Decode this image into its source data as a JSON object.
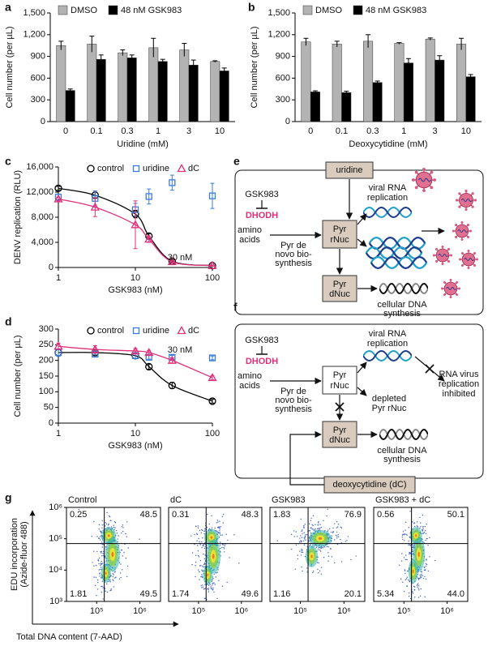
{
  "chart_data": [
    {
      "panel_label": "a",
      "type": "bar",
      "categories": [
        "0",
        "0.1",
        "0.3",
        "1",
        "3",
        "10"
      ],
      "xlabel": "Uridine (mM)",
      "ylabel": "Cell number (per µL)",
      "ylim": [
        0,
        1500
      ],
      "yticks": [
        0,
        300,
        600,
        900,
        {
          "value": 1200,
          "label": "1,200"
        },
        {
          "value": 1500,
          "label": "1,500"
        }
      ],
      "series": [
        {
          "name": "DMSO",
          "color": "#b3b3b3",
          "values": [
            1050,
            1070,
            950,
            1020,
            990,
            830
          ],
          "errors": [
            60,
            110,
            40,
            130,
            90,
            10
          ]
        },
        {
          "name": "48 nM GSK983",
          "color": "#000000",
          "values": [
            430,
            860,
            880,
            830,
            780,
            700
          ],
          "errors": [
            20,
            60,
            40,
            30,
            70,
            40
          ]
        }
      ]
    },
    {
      "panel_label": "b",
      "type": "bar",
      "categories": [
        "0",
        "0.1",
        "0.3",
        "1",
        "3",
        "10"
      ],
      "xlabel": "Deoxycytidine (mM)",
      "ylabel": "Cell number (per µL)",
      "ylim": [
        0,
        1500
      ],
      "yticks": [
        0,
        300,
        600,
        900,
        {
          "value": 1200,
          "label": "1,200"
        },
        {
          "value": 1500,
          "label": "1,500"
        }
      ],
      "series": [
        {
          "name": "DMSO",
          "color": "#b3b3b3",
          "values": [
            1100,
            1070,
            1110,
            1080,
            1140,
            1070
          ],
          "errors": [
            50,
            40,
            90,
            10,
            15,
            80
          ]
        },
        {
          "name": "48 nM GSK983",
          "color": "#000000",
          "values": [
            410,
            400,
            540,
            810,
            850,
            620
          ],
          "errors": [
            15,
            20,
            20,
            60,
            60,
            30
          ]
        }
      ]
    },
    {
      "panel_label": "c",
      "type": "scatter",
      "xscale": "log",
      "xlim": [
        1,
        100
      ],
      "xticks": [
        1,
        10,
        100
      ],
      "ylim": [
        0,
        16000
      ],
      "yticks": [
        0,
        {
          "value": 4000,
          "label": "4,000"
        },
        {
          "value": 8000,
          "label": "8,000"
        },
        {
          "value": 12000,
          "label": "12,000"
        },
        {
          "value": 16000,
          "label": "16,000"
        }
      ],
      "xlabel": "GSK983 (nM)",
      "ylabel": "DENV replication (RLU)",
      "annotation": "30 nM",
      "series": [
        {
          "name": "control",
          "color": "#000000",
          "marker": "circle",
          "fit": true,
          "x": [
            1,
            3,
            10,
            15,
            30,
            100
          ],
          "values": [
            12600,
            11500,
            8500,
            5000,
            1000,
            300
          ],
          "errors": [
            300,
            500,
            600,
            400,
            200,
            100
          ]
        },
        {
          "name": "uridine",
          "color": "#3a7bd5",
          "marker": "square",
          "fit": false,
          "x": [
            1,
            3,
            10,
            15,
            30,
            100
          ],
          "values": [
            11200,
            11000,
            9200,
            11300,
            13500,
            11400
          ],
          "errors": [
            500,
            1200,
            1000,
            1200,
            1200,
            2000
          ]
        },
        {
          "name": "dC",
          "color": "#e0307a",
          "marker": "triangle",
          "fit": true,
          "x": [
            1,
            3,
            10,
            15,
            30,
            100
          ],
          "values": [
            10900,
            9600,
            6800,
            4500,
            900,
            300
          ],
          "errors": [
            300,
            1500,
            3800,
            500,
            200,
            100
          ]
        }
      ]
    },
    {
      "panel_label": "d",
      "type": "scatter",
      "xscale": "log",
      "xlim": [
        1,
        100
      ],
      "xticks": [
        1,
        10,
        100
      ],
      "ylim": [
        0,
        300
      ],
      "yticks": [
        0,
        50,
        100,
        150,
        200,
        250,
        300
      ],
      "xlabel": "GSK983 (nM)",
      "ylabel": "Cell number (per µL)",
      "annotation": "30 nM",
      "series": [
        {
          "name": "control",
          "color": "#000000",
          "marker": "circle",
          "fit": true,
          "x": [
            1,
            3,
            10,
            15,
            30,
            100
          ],
          "values": [
            225,
            225,
            215,
            180,
            120,
            70
          ],
          "errors": [
            10,
            8,
            8,
            8,
            10,
            6
          ]
        },
        {
          "name": "uridine",
          "color": "#3a7bd5",
          "marker": "square",
          "fit": false,
          "x": [
            1,
            3,
            10,
            15,
            30,
            100
          ],
          "values": [
            225,
            220,
            215,
            210,
            210,
            208
          ],
          "errors": [
            12,
            8,
            8,
            6,
            6,
            6
          ]
        },
        {
          "name": "dC",
          "color": "#e0307a",
          "marker": "triangle",
          "fit": true,
          "x": [
            1,
            3,
            10,
            15,
            30,
            100
          ],
          "values": [
            245,
            235,
            230,
            225,
            200,
            145
          ],
          "errors": [
            10,
            12,
            8,
            6,
            8,
            6
          ]
        }
      ]
    },
    {
      "panel_label": "g",
      "type": "density",
      "title": "Control",
      "xscale": "log",
      "yscale": "log",
      "xlim": [
        20000,
        3000000
      ],
      "ylim": [
        1000,
        1000000
      ],
      "xticks": [
        {
          "value": 100000,
          "label": "10⁵"
        },
        {
          "value": 1000000,
          "label": "10⁶"
        }
      ],
      "yticks": [
        {
          "value": 1000,
          "label": "10³"
        },
        {
          "value": 10000,
          "label": "10⁴"
        },
        {
          "value": 100000,
          "label": "10⁵"
        },
        {
          "value": 1000000,
          "label": "10⁶"
        }
      ],
      "ylabel": [
        "EDU incorporation",
        "(Azide-fluor 488)"
      ],
      "xlabel": "Total DNA content (7-AAD)",
      "gate": {
        "x": 150000,
        "y": 70000
      },
      "values": [
        0.25,
        48.5,
        1.81,
        49.5
      ]
    },
    {
      "type": "density",
      "title": "dC",
      "xscale": "log",
      "yscale": "log",
      "xlim": [
        20000,
        3000000
      ],
      "ylim": [
        1000,
        1000000
      ],
      "xticks": [
        {
          "value": 100000,
          "label": "10⁵"
        },
        {
          "value": 1000000,
          "label": "10⁶"
        }
      ],
      "gate": {
        "x": 150000,
        "y": 70000
      },
      "values": [
        0.31,
        48.3,
        1.74,
        49.6
      ]
    },
    {
      "type": "density",
      "title": "GSK983",
      "xscale": "log",
      "yscale": "log",
      "xlim": [
        20000,
        3000000
      ],
      "ylim": [
        1000,
        1000000
      ],
      "xticks": [
        {
          "value": 100000,
          "label": "10⁵"
        },
        {
          "value": 1000000,
          "label": "10⁶"
        }
      ],
      "gate": {
        "x": 150000,
        "y": 70000
      },
      "values": [
        1.83,
        76.9,
        1.16,
        20.1
      ]
    },
    {
      "type": "density",
      "title": "GSK983 + dC",
      "xscale": "log",
      "yscale": "log",
      "xlim": [
        20000,
        3000000
      ],
      "ylim": [
        1000,
        1000000
      ],
      "xticks": [
        {
          "value": 100000,
          "label": "10⁵"
        },
        {
          "value": 1000000,
          "label": "10⁶"
        }
      ],
      "gate": {
        "x": 150000,
        "y": 70000
      },
      "values": [
        0.56,
        50.1,
        5.34,
        44.0
      ],
      "value_labels": [
        "0.56",
        "50.1",
        "5.34",
        "44.0"
      ]
    }
  ],
  "diagrams": [
    {
      "panel_label": "e",
      "inhibitor": "GSK983",
      "enzyme": "DHODH",
      "substrate": [
        "amino",
        "acids"
      ],
      "pathway": [
        "Pyr de",
        "novo bio-",
        "synthesis"
      ],
      "rnuc": [
        "Pyr",
        "rNuc"
      ],
      "dnuc": [
        "Pyr",
        "dNuc"
      ],
      "viral": [
        "viral RNA",
        "replication"
      ],
      "dna": [
        "cellular DNA",
        "synthesis"
      ],
      "supplement": "uridine"
    },
    {
      "panel_label": "f",
      "inhibitor": "GSK983",
      "enzyme": "DHODH",
      "substrate": [
        "amino",
        "acids"
      ],
      "pathway": [
        "Pyr de",
        "novo bio-",
        "synthesis"
      ],
      "rnuc": [
        "Pyr",
        "rNuc"
      ],
      "dnuc": [
        "Pyr",
        "dNuc"
      ],
      "viral": [
        "viral RNA",
        "replication"
      ],
      "dna": [
        "cellular DNA",
        "synthesis"
      ],
      "inhibited": [
        "RNA virus",
        "replication",
        "inhibited"
      ],
      "depleted": [
        "depleted",
        "Pyr rNuc"
      ],
      "supplement": "deoxycytidine (dC)"
    }
  ]
}
